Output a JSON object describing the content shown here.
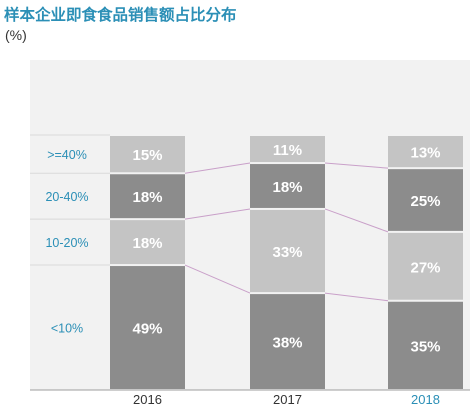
{
  "title": "样本企业即食食品销售额占比分布",
  "unit": "(%)",
  "colors": {
    "title": "#2b8fb6",
    "legend_text": "#2b8fb6",
    "axis_text": "#333333",
    "highlight_year": "#2b8fb6",
    "bar_dark": "#8c8c8c",
    "bar_light": "#c4c4c4",
    "connector": "#c9a0c9",
    "value_text": "#ffffff",
    "background_band": "#f2f2f2"
  },
  "chart_data": {
    "type": "bar",
    "stacked": true,
    "percent": true,
    "title": "样本企业即食食品销售额占比分布",
    "ylabel": "(%)",
    "categories": [
      "2016",
      "2017",
      "2018"
    ],
    "highlighted_category": "2018",
    "ylim": [
      0,
      100
    ],
    "series": [
      {
        "name": "<10%",
        "values": [
          49,
          38,
          35
        ],
        "labels": [
          "49%",
          "38%",
          "35%"
        ],
        "shade": "dark"
      },
      {
        "name": "10-20%",
        "values": [
          18,
          33,
          27
        ],
        "labels": [
          "18%",
          "33%",
          "27%"
        ],
        "shade": "light"
      },
      {
        "name": "20-40%",
        "values": [
          18,
          18,
          25
        ],
        "labels": [
          "18%",
          "18%",
          "25%"
        ],
        "shade": "dark"
      },
      {
        "name": ">=40%",
        "values": [
          15,
          11,
          13
        ],
        "labels": [
          "15%",
          "11%",
          "13%"
        ],
        "shade": "light"
      }
    ],
    "legend_position": "left",
    "grid": false
  }
}
